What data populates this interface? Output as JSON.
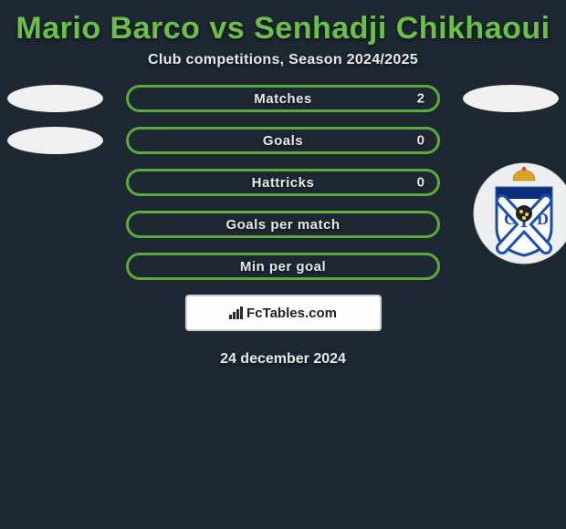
{
  "title": "Mario Barco vs Senhadji Chikhaoui",
  "subtitle": "Club competitions, Season 2024/2025",
  "stats": [
    {
      "label": "Matches",
      "value": "2",
      "show_left_oval": true,
      "show_right_oval": true,
      "show_value": true
    },
    {
      "label": "Goals",
      "value": "0",
      "show_left_oval": true,
      "show_right_oval": false,
      "show_value": true
    },
    {
      "label": "Hattricks",
      "value": "0",
      "show_left_oval": false,
      "show_right_oval": false,
      "show_value": true
    },
    {
      "label": "Goals per match",
      "value": "",
      "show_left_oval": false,
      "show_right_oval": false,
      "show_value": false
    },
    {
      "label": "Min per goal",
      "value": "",
      "show_left_oval": false,
      "show_right_oval": false,
      "show_value": false
    }
  ],
  "brand": "FcTables.com",
  "date": "24 december 2024",
  "colors": {
    "bg": "#1e2833",
    "accent": "#6cc04a",
    "pill_border": "#5aab3c",
    "text": "#e8e8e8",
    "oval": "#f0f0f0"
  },
  "club_badge": {
    "name": "CD Tenerife",
    "outer_ring": "#f2f2f2",
    "shield_top": "#0b2e7a",
    "shield_white": "#ffffff",
    "shield_blue": "#1a4fb5",
    "shield_border": "#204a9a",
    "crown_gold": "#d4a52a"
  }
}
